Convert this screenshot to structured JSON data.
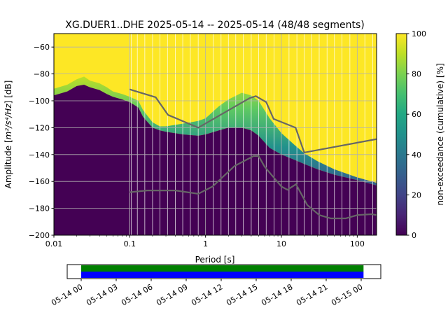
{
  "chart_data": {
    "type": "heatmap",
    "title": "XG.DUER1..DHE   2025-05-14 -- 2025-05-14  (48/48 segments)",
    "xlabel": "Period [s]",
    "ylabel_prefix": "Amplitude [",
    "ylabel_unit": "m²/s⁴/Hz",
    "ylabel_suffix": "] [dB]",
    "xscale": "log",
    "xlim": [
      0.01,
      180
    ],
    "ylim": [
      -200,
      -50
    ],
    "x_ticks": [
      {
        "value": 0.01,
        "label": "0.01"
      },
      {
        "value": 0.1,
        "label": "0.1"
      },
      {
        "value": 1,
        "label": "1"
      },
      {
        "value": 10,
        "label": "10"
      },
      {
        "value": 100,
        "label": "100"
      }
    ],
    "y_ticks": [
      {
        "value": -60,
        "label": "−60"
      },
      {
        "value": -80,
        "label": "−80"
      },
      {
        "value": -100,
        "label": "−100"
      },
      {
        "value": -120,
        "label": "−120"
      },
      {
        "value": -140,
        "label": "−140"
      },
      {
        "value": -160,
        "label": "−160"
      },
      {
        "value": -180,
        "label": "−180"
      },
      {
        "value": -200,
        "label": "−200"
      }
    ],
    "colorbar": {
      "label": "non-exceedance (cumulative) [%]",
      "range": [
        0,
        100
      ],
      "ticks": [
        {
          "value": 0,
          "label": "0"
        },
        {
          "value": 20,
          "label": "20"
        },
        {
          "value": 40,
          "label": "40"
        },
        {
          "value": 60,
          "label": "60"
        },
        {
          "value": 80,
          "label": "80"
        },
        {
          "value": 100,
          "label": "100"
        }
      ]
    },
    "psd_lower_edge": [
      {
        "period": 0.01,
        "db": -96
      },
      {
        "period": 0.015,
        "db": -93
      },
      {
        "period": 0.02,
        "db": -89
      },
      {
        "period": 0.025,
        "db": -88
      },
      {
        "period": 0.03,
        "db": -90
      },
      {
        "period": 0.04,
        "db": -92
      },
      {
        "period": 0.05,
        "db": -95
      },
      {
        "period": 0.06,
        "db": -97
      },
      {
        "period": 0.08,
        "db": -99
      },
      {
        "period": 0.1,
        "db": -101
      },
      {
        "period": 0.13,
        "db": -105
      },
      {
        "period": 0.15,
        "db": -112
      },
      {
        "period": 0.2,
        "db": -120
      },
      {
        "period": 0.25,
        "db": -122
      },
      {
        "period": 0.3,
        "db": -123
      },
      {
        "period": 0.5,
        "db": -125
      },
      {
        "period": 0.8,
        "db": -126
      },
      {
        "period": 1,
        "db": -125
      },
      {
        "period": 1.5,
        "db": -122
      },
      {
        "period": 2,
        "db": -120
      },
      {
        "period": 3,
        "db": -120
      },
      {
        "period": 4,
        "db": -122
      },
      {
        "period": 5,
        "db": -126
      },
      {
        "period": 7,
        "db": -135
      },
      {
        "period": 10,
        "db": -140
      },
      {
        "period": 15,
        "db": -144
      },
      {
        "period": 20,
        "db": -147
      },
      {
        "period": 30,
        "db": -151
      },
      {
        "period": 50,
        "db": -155
      },
      {
        "period": 100,
        "db": -159
      },
      {
        "period": 180,
        "db": -163
      }
    ],
    "psd_upper_edge": [
      {
        "period": 0.01,
        "db": -91
      },
      {
        "period": 0.015,
        "db": -88
      },
      {
        "period": 0.02,
        "db": -84
      },
      {
        "period": 0.025,
        "db": -82
      },
      {
        "period": 0.03,
        "db": -85
      },
      {
        "period": 0.04,
        "db": -87
      },
      {
        "period": 0.05,
        "db": -90
      },
      {
        "period": 0.06,
        "db": -93
      },
      {
        "period": 0.08,
        "db": -95
      },
      {
        "period": 0.1,
        "db": -97
      },
      {
        "period": 0.13,
        "db": -100
      },
      {
        "period": 0.15,
        "db": -107
      },
      {
        "period": 0.2,
        "db": -116
      },
      {
        "period": 0.25,
        "db": -119
      },
      {
        "period": 0.3,
        "db": -119
      },
      {
        "period": 0.5,
        "db": -117
      },
      {
        "period": 0.8,
        "db": -115
      },
      {
        "period": 1,
        "db": -113
      },
      {
        "period": 1.5,
        "db": -104
      },
      {
        "period": 2,
        "db": -99
      },
      {
        "period": 3,
        "db": -94
      },
      {
        "period": 4,
        "db": -96
      },
      {
        "period": 5,
        "db": -100
      },
      {
        "period": 7,
        "db": -113
      },
      {
        "period": 10,
        "db": -124
      },
      {
        "period": 15,
        "db": -133
      },
      {
        "period": 20,
        "db": -139
      },
      {
        "period": 30,
        "db": -145
      },
      {
        "period": 50,
        "db": -151
      },
      {
        "period": 100,
        "db": -157
      },
      {
        "period": 180,
        "db": -161
      }
    ],
    "series": [
      {
        "name": "high noise model",
        "color": "#666666",
        "points": [
          {
            "period": 0.1,
            "db": -91.5
          },
          {
            "period": 0.22,
            "db": -97.4
          },
          {
            "period": 0.32,
            "db": -110.5
          },
          {
            "period": 0.8,
            "db": -120
          },
          {
            "period": 3.8,
            "db": -98
          },
          {
            "period": 4.6,
            "db": -96.5
          },
          {
            "period": 6.3,
            "db": -101
          },
          {
            "period": 7.9,
            "db": -113.5
          },
          {
            "period": 15.4,
            "db": -120
          },
          {
            "period": 20,
            "db": -138.5
          },
          {
            "period": 180,
            "db": -128.5
          }
        ]
      },
      {
        "name": "low noise model",
        "color": "#666666",
        "points": [
          {
            "period": 0.1,
            "db": -168
          },
          {
            "period": 0.17,
            "db": -166.7
          },
          {
            "period": 0.4,
            "db": -166.7
          },
          {
            "period": 0.8,
            "db": -169.2
          },
          {
            "period": 1.24,
            "db": -163.7
          },
          {
            "period": 2.4,
            "db": -148.6
          },
          {
            "period": 4.3,
            "db": -141.1
          },
          {
            "period": 5,
            "db": -141.1
          },
          {
            "period": 6,
            "db": -149
          },
          {
            "period": 10,
            "db": -163.8
          },
          {
            "period": 12,
            "db": -166.2
          },
          {
            "period": 15.6,
            "db": -162.1
          },
          {
            "period": 21.9,
            "db": -177.5
          },
          {
            "period": 31.6,
            "db": -185
          },
          {
            "period": 45,
            "db": -187.5
          },
          {
            "period": 70,
            "db": -187.5
          },
          {
            "period": 101,
            "db": -185
          },
          {
            "period": 154,
            "db": -184.4
          },
          {
            "period": 180,
            "db": -185
          }
        ]
      }
    ],
    "segment_periods": [
      0.1,
      0.105,
      0.126,
      0.158,
      0.2,
      0.25,
      0.315,
      0.4,
      0.5,
      0.63,
      0.8,
      1.26,
      1.6,
      2.0,
      2.5,
      3.15,
      4.0,
      5.0,
      6.3,
      8.0,
      12.6,
      16,
      20,
      25,
      31.5,
      40,
      50,
      63,
      80,
      126,
      160
    ],
    "timeline": {
      "start": "2025-05-14 00:00",
      "end": "2025-05-15 01:00",
      "coverage": [
        {
          "from_hour": 0,
          "to_hour": 24.2
        }
      ],
      "colors": [
        "#008000",
        "#0000ff"
      ],
      "ticks": [
        {
          "hour": 0,
          "label": "05-14 00"
        },
        {
          "hour": 3,
          "label": "05-14 03"
        },
        {
          "hour": 6,
          "label": "05-14 06"
        },
        {
          "hour": 9,
          "label": "05-14 09"
        },
        {
          "hour": 12,
          "label": "05-14 12"
        },
        {
          "hour": 15,
          "label": "05-14 15"
        },
        {
          "hour": 18,
          "label": "05-14 18"
        },
        {
          "hour": 21,
          "label": "05-14 21"
        },
        {
          "hour": 24,
          "label": "05-15 00"
        }
      ]
    }
  }
}
